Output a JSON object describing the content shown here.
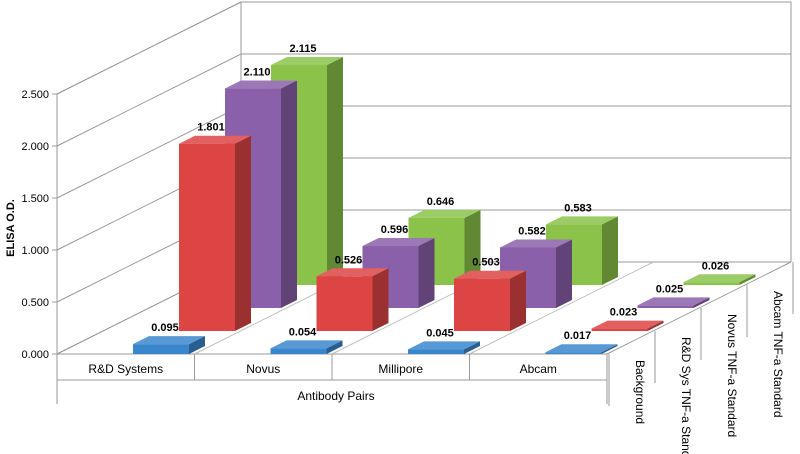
{
  "chart_data": {
    "type": "bar",
    "title": "",
    "xlabel": "Antibody Pairs",
    "ylabel": "ELISA O.D.",
    "ylim": [
      0,
      2.5
    ],
    "yticks": [
      "0.000",
      "0.500",
      "1.000",
      "1.500",
      "2.000",
      "2.500"
    ],
    "grid": true,
    "categories": [
      "R&D Systems",
      "Novus",
      "Millipore",
      "Abcam"
    ],
    "series": [
      {
        "name": "Background",
        "color": "#3a86cc",
        "values": [
          0.095,
          0.054,
          0.045,
          0.017
        ],
        "labels": [
          "0.095",
          "0.054",
          "0.045",
          "0.017"
        ]
      },
      {
        "name": "R&D Sys TNF-a Standard",
        "color": "#dd4444",
        "values": [
          1.801,
          0.526,
          0.503,
          0.023
        ],
        "labels": [
          "1.801",
          "0.526",
          "0.503",
          "0.023"
        ]
      },
      {
        "name": "Novus TNF-a Standard",
        "color": "#8a60aa",
        "values": [
          2.11,
          0.596,
          0.582,
          0.025
        ],
        "labels": [
          "2.110",
          "0.596",
          "0.582",
          "0.025"
        ]
      },
      {
        "name": "Abcam TNF-a Standard",
        "color": "#8bc34a",
        "values": [
          2.115,
          0.646,
          0.583,
          0.026
        ],
        "labels": [
          "2.115",
          "0.646",
          "0.583",
          "0.026"
        ]
      }
    ]
  }
}
